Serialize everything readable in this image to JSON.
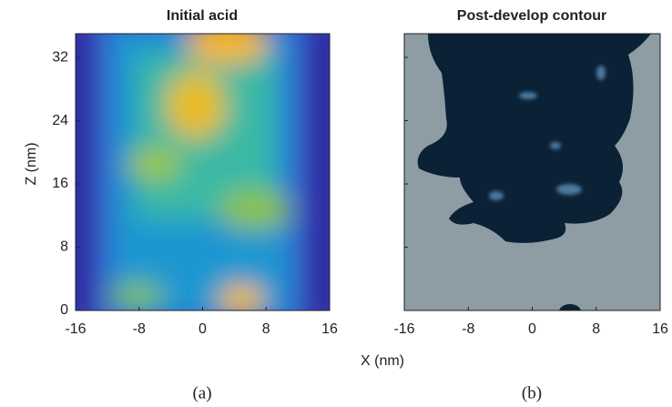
{
  "chart_data": [
    {
      "type": "image",
      "title": "Initial acid",
      "xlabel": "X (nm)",
      "ylabel": "Z (nm)",
      "caption": "(a)",
      "xlim": [
        -16,
        16
      ],
      "ylim": [
        0,
        35
      ],
      "xticks": [
        -16,
        -8,
        0,
        8,
        16
      ],
      "yticks": [
        0,
        8,
        16,
        24,
        32
      ]
    },
    {
      "type": "image",
      "title": "Post-develop contour",
      "caption": "(b)",
      "xlim": [
        -16,
        16
      ],
      "ylim": [
        0,
        35
      ],
      "xticks": [
        -16,
        -8,
        0,
        8,
        16
      ]
    }
  ]
}
